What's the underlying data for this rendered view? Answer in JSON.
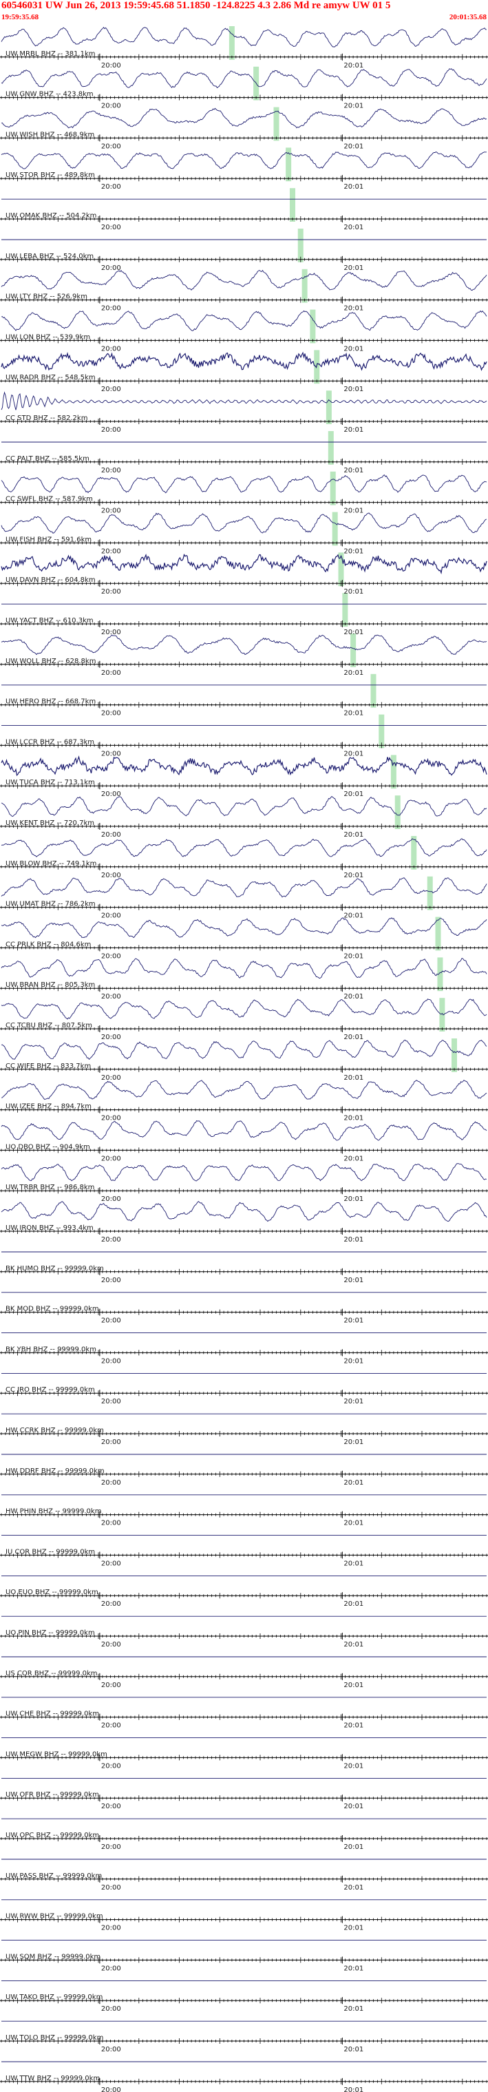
{
  "header": {
    "title": "60546031 UW Jun 26, 2013 19:59:45.68    51.1850 -124.8225   4.3 2.86 Md re amyw UW 01    5",
    "start_time": "19:59:35.68",
    "end_time": "20:01:35.68"
  },
  "colors": {
    "waveform": "#1a1a6e",
    "pick_marker": "#b8e6bd",
    "header_text": "#ff0000",
    "axis": "#000000"
  },
  "chart_data": {
    "type": "line",
    "title": "60546031 UW Jun 26, 2013 19:59:45.68    51.1850 -124.8225   4.3 2.86 Md re amyw UW 01    5",
    "x_range": [
      "19:59:35.68",
      "20:01:35.68"
    ],
    "x_tick_labels": [
      "20:00",
      "20:01"
    ],
    "x_tick_times_seconds_from_start": [
      24.32,
      84.32
    ],
    "duration_seconds": 120,
    "traces": [
      {
        "label": "UW MRBL BHZ -- 381.1km",
        "signal": "moderate",
        "pick_seconds": 57
      },
      {
        "label": "UW GNW BHZ -- 423.8km",
        "signal": "moderate",
        "pick_seconds": 63
      },
      {
        "label": "UW WISH BHZ -- 468.9km",
        "signal": "moderate",
        "pick_seconds": 68
      },
      {
        "label": "UW STOR BHZ -- 489.8km",
        "signal": "moderate",
        "pick_seconds": 71
      },
      {
        "label": "UW OMAK BHZ -- 504.2km",
        "signal": "flat",
        "pick_seconds": 72
      },
      {
        "label": "UW LEBA BHZ -- 524.0km",
        "signal": "flat",
        "pick_seconds": 74
      },
      {
        "label": "UW LTY BHZ -- 526.9km",
        "signal": "moderate",
        "pick_seconds": 75
      },
      {
        "label": "UW LON BHZ -- 539.9km",
        "signal": "moderate",
        "pick_seconds": 77
      },
      {
        "label": "UW RADR BHZ -- 548.5km",
        "signal": "noisy",
        "pick_seconds": 78
      },
      {
        "label": "CC STD BHZ -- 582.2km",
        "signal": "burst",
        "pick_seconds": 81
      },
      {
        "label": "CC PALT BHZ -- 585.5km",
        "signal": "flat",
        "pick_seconds": 81.5
      },
      {
        "label": "CC SWFL BHZ -- 587.9km",
        "signal": "moderate",
        "pick_seconds": 82
      },
      {
        "label": "UW FISH BHZ -- 591.6km",
        "signal": "moderate",
        "pick_seconds": 82.5
      },
      {
        "label": "UW DAVN BHZ -- 604.8km",
        "signal": "noisy",
        "pick_seconds": 84
      },
      {
        "label": "UW YACT BHZ -- 610.3km",
        "signal": "flat",
        "pick_seconds": 85
      },
      {
        "label": "UW WOLL BHZ -- 628.8km",
        "signal": "moderate",
        "pick_seconds": 87
      },
      {
        "label": "UW HERO BHZ -- 668.7km",
        "signal": "flat",
        "pick_seconds": 92
      },
      {
        "label": "UW LCCR BHZ -- 687.3km",
        "signal": "flat",
        "pick_seconds": 94
      },
      {
        "label": "UW TUCA BHZ -- 713.1km",
        "signal": "noisy",
        "pick_seconds": 97
      },
      {
        "label": "UW KENT BHZ -- 720.7km",
        "signal": "moderate",
        "pick_seconds": 98
      },
      {
        "label": "UW BLOW BHZ -- 749.1km",
        "signal": "moderate",
        "pick_seconds": 102
      },
      {
        "label": "UW UMAT BHZ -- 786.2km",
        "signal": "moderate",
        "pick_seconds": 106
      },
      {
        "label": "CC PRLK BHZ -- 804.6km",
        "signal": "moderate",
        "pick_seconds": 108
      },
      {
        "label": "UW BRAN BHZ -- 805.3km",
        "signal": "moderate",
        "pick_seconds": 108.5
      },
      {
        "label": "CC TCBU BHZ -- 807.5km",
        "signal": "moderate",
        "pick_seconds": 109
      },
      {
        "label": "CC WIFE BHZ -- 833.7km",
        "signal": "moderate",
        "pick_seconds": 112
      },
      {
        "label": "UW IZEE BHZ -- 894.7km",
        "signal": "moderate",
        "pick_seconds": null
      },
      {
        "label": "UO DBO BHZ -- 904.9km",
        "signal": "moderate",
        "pick_seconds": null
      },
      {
        "label": "UW TRBR BHZ -- 986.8km",
        "signal": "moderate",
        "pick_seconds": null
      },
      {
        "label": "UW IRON BHZ -- 993.4km",
        "signal": "moderate",
        "pick_seconds": null
      },
      {
        "label": "BK HUMO BHZ -- 99999.0km",
        "signal": "flat",
        "pick_seconds": null
      },
      {
        "label": "BK MOD BHZ -- 99999.0km",
        "signal": "flat",
        "pick_seconds": null
      },
      {
        "label": "BK YBH BHZ -- 99999.0km",
        "signal": "flat",
        "pick_seconds": null
      },
      {
        "label": "CC JRO BHZ -- 99999.0km",
        "signal": "flat",
        "pick_seconds": null
      },
      {
        "label": "HW CCRK BHZ -- 99999.0km",
        "signal": "flat",
        "pick_seconds": null
      },
      {
        "label": "HW DDRF BHZ -- 99999.0km",
        "signal": "flat",
        "pick_seconds": null
      },
      {
        "label": "HW PHIN BHZ -- 99999.0km",
        "signal": "flat",
        "pick_seconds": null
      },
      {
        "label": "IU COR BHZ -- 99999.0km",
        "signal": "flat",
        "pick_seconds": null
      },
      {
        "label": "UO EUO BHZ -- 99999.0km",
        "signal": "flat",
        "pick_seconds": null
      },
      {
        "label": "UO PIN BHZ -- 99999.0km",
        "signal": "flat",
        "pick_seconds": null
      },
      {
        "label": "US COR BHZ -- 99999.0km",
        "signal": "flat",
        "pick_seconds": null
      },
      {
        "label": "UW CHE BHZ -- 99999.0km",
        "signal": "flat",
        "pick_seconds": null
      },
      {
        "label": "UW MEGW BHZ -- 99999.0km",
        "signal": "flat",
        "pick_seconds": null
      },
      {
        "label": "UW OFR BHZ -- 99999.0km",
        "signal": "flat",
        "pick_seconds": null
      },
      {
        "label": "UW OPC BHZ -- 99999.0km",
        "signal": "flat",
        "pick_seconds": null
      },
      {
        "label": "UW PASS BHZ -- 99999.0km",
        "signal": "flat",
        "pick_seconds": null
      },
      {
        "label": "UW RWW BHZ -- 99999.0km",
        "signal": "flat",
        "pick_seconds": null
      },
      {
        "label": "UW SQM BHZ -- 99999.0km",
        "signal": "flat",
        "pick_seconds": null
      },
      {
        "label": "UW TAKO BHZ -- 99999.0km",
        "signal": "flat",
        "pick_seconds": null
      },
      {
        "label": "UW TOLO BHZ -- 99999.0km",
        "signal": "flat",
        "pick_seconds": null
      },
      {
        "label": "UW TTW BHZ -- 99999.0km",
        "signal": "flat",
        "pick_seconds": null
      }
    ]
  }
}
